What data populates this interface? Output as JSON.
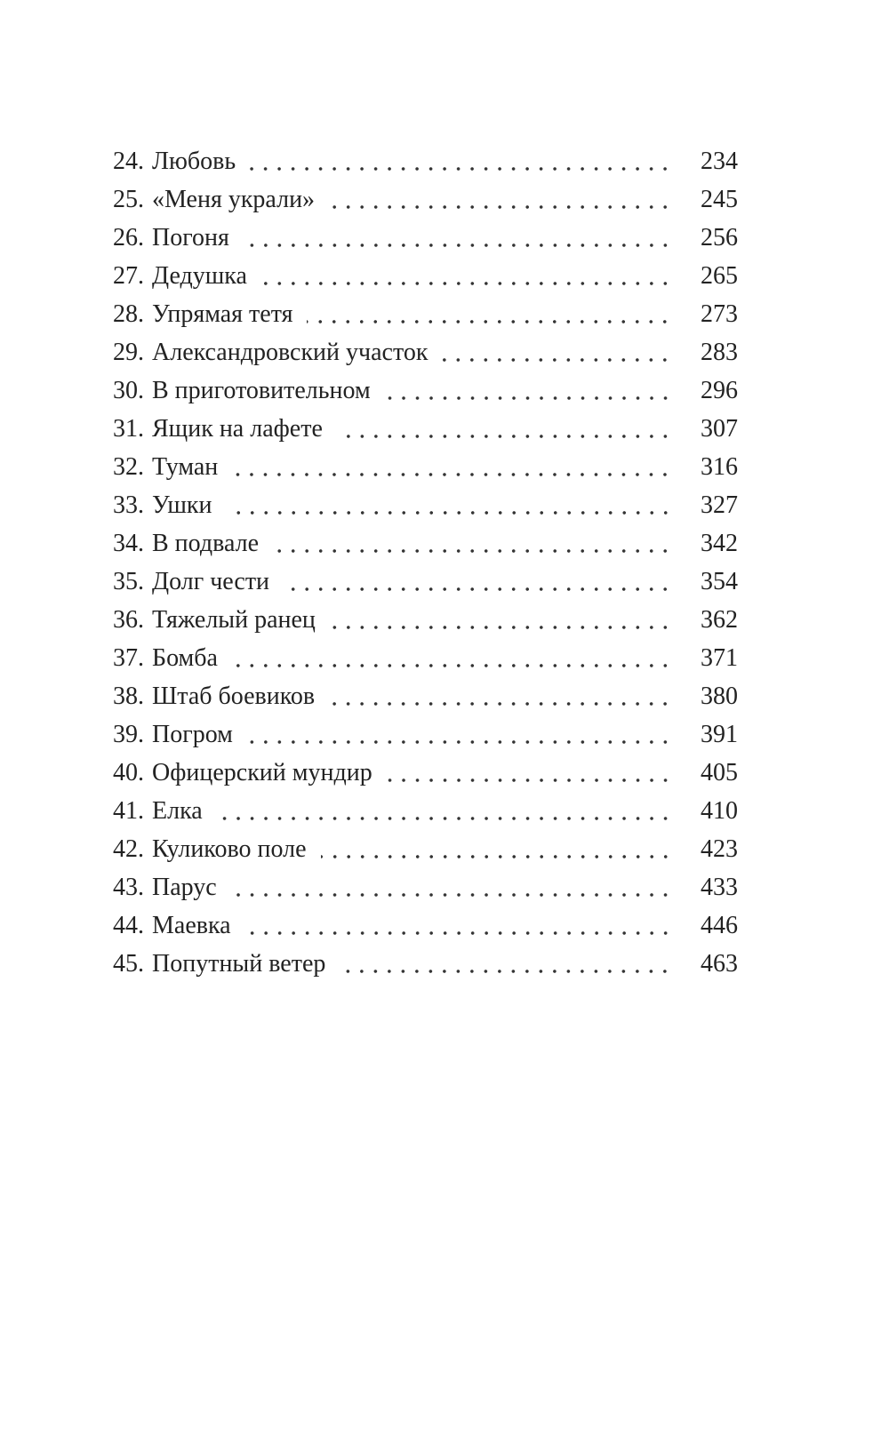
{
  "toc": {
    "entries": [
      {
        "number": "24.",
        "title": "Любовь",
        "page": 234
      },
      {
        "number": "25.",
        "title": "«Меня украли»",
        "page": 245
      },
      {
        "number": "26.",
        "title": "Погоня",
        "page": 256
      },
      {
        "number": "27.",
        "title": "Дедушка",
        "page": 265
      },
      {
        "number": "28.",
        "title": "Упрямая тетя",
        "page": 273
      },
      {
        "number": "29.",
        "title": "Александровский участок",
        "page": 283
      },
      {
        "number": "30.",
        "title": "В приготовительном",
        "page": 296
      },
      {
        "number": "31.",
        "title": "Ящик на лафете",
        "page": 307
      },
      {
        "number": "32.",
        "title": "Туман",
        "page": 316
      },
      {
        "number": "33.",
        "title": "Ушки",
        "page": 327
      },
      {
        "number": "34.",
        "title": "В подвале",
        "page": 342
      },
      {
        "number": "35.",
        "title": "Долг чести",
        "page": 354
      },
      {
        "number": "36.",
        "title": "Тяжелый ранец",
        "page": 362
      },
      {
        "number": "37.",
        "title": "Бомба",
        "page": 371
      },
      {
        "number": "38.",
        "title": "Штаб боевиков",
        "page": 380
      },
      {
        "number": "39.",
        "title": "Погром",
        "page": 391
      },
      {
        "number": "40.",
        "title": "Офицерский мундир",
        "page": 405
      },
      {
        "number": "41.",
        "title": "Елка",
        "page": 410
      },
      {
        "number": "42.",
        "title": "Куликово поле",
        "page": 423
      },
      {
        "number": "43.",
        "title": "Парус",
        "page": 433
      },
      {
        "number": "44.",
        "title": "Маевка",
        "page": 446
      },
      {
        "number": "45.",
        "title": "Попутный ветер",
        "page": 463
      }
    ]
  }
}
